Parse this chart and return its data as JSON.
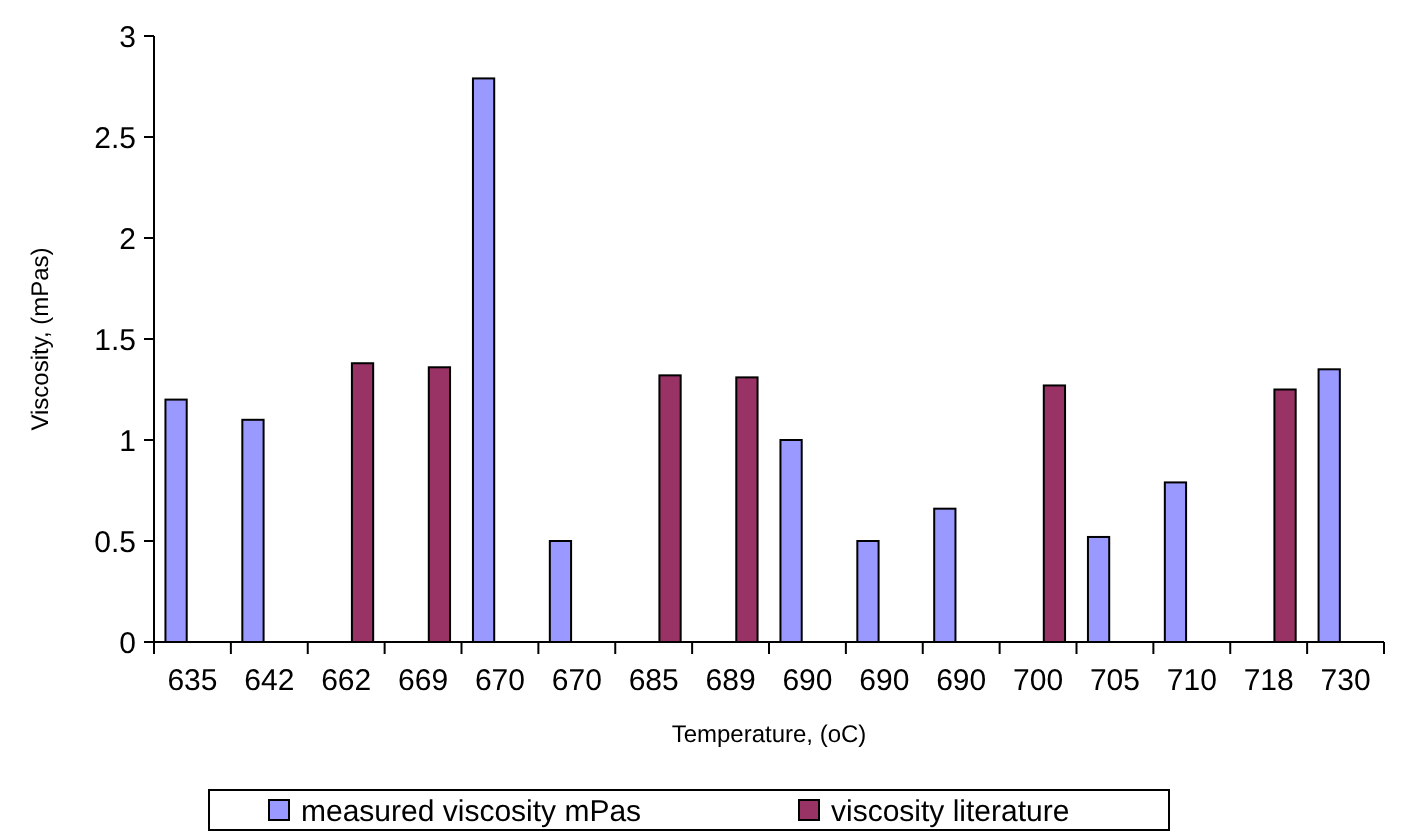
{
  "chart_data": {
    "type": "bar",
    "xlabel": "Temperature, (oC)",
    "ylabel": "Viscosity, (mPas)",
    "categories": [
      "635",
      "642",
      "662",
      "669",
      "670",
      "670",
      "685",
      "689",
      "690",
      "690",
      "690",
      "700",
      "705",
      "710",
      "718",
      "730"
    ],
    "series": [
      {
        "name": "measured viscosity mPas",
        "color": "#9999ff",
        "values": [
          1.2,
          1.1,
          null,
          null,
          2.79,
          0.5,
          null,
          null,
          1.0,
          0.5,
          0.66,
          null,
          0.52,
          0.79,
          null,
          1.35
        ]
      },
      {
        "name": "viscosity literature",
        "color": "#993366",
        "values": [
          null,
          null,
          1.38,
          1.36,
          null,
          null,
          1.32,
          1.31,
          null,
          null,
          null,
          1.27,
          null,
          null,
          1.25,
          null
        ]
      }
    ],
    "ylim": [
      0,
      3
    ],
    "yticks": [
      0,
      0.5,
      1,
      1.5,
      2,
      2.5,
      3
    ],
    "legend": "bottom",
    "grid": false
  }
}
